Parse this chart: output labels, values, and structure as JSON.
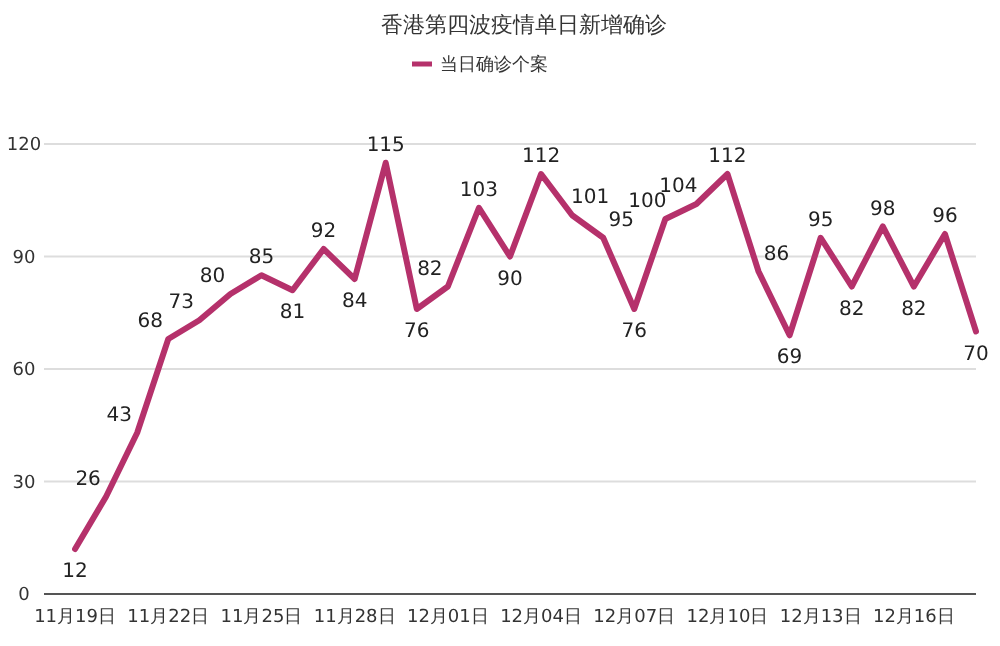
{
  "chart_data": {
    "type": "line",
    "title": "香港第四波疫情单日新增确诊",
    "x": [
      "--11-19",
      "--11-20",
      "--11-21",
      "--11-22",
      "--11-23",
      "--11-24",
      "--11-25",
      "--11-26",
      "--11-27",
      "--11-28",
      "--11-29",
      "--11-30",
      "--12-01",
      "--12-02",
      "--12-03",
      "--12-04",
      "--12-05",
      "--12-06",
      "--12-07",
      "--12-08",
      "--12-09",
      "--12-10",
      "--12-11",
      "--12-12",
      "--12-13",
      "--12-14",
      "--12-15",
      "--12-16",
      "--12-17",
      "--12-18"
    ],
    "series": [
      {
        "name": "当日确诊个案",
        "color": "#b5316b",
        "values": [
          12,
          26,
          43,
          68,
          73,
          80,
          85,
          81,
          92,
          84,
          115,
          76,
          82,
          103,
          90,
          112,
          101,
          95,
          76,
          100,
          104,
          112,
          86,
          69,
          95,
          82,
          98,
          82,
          96,
          70
        ]
      }
    ],
    "xlim": [
      "--11-18",
      "--12-18"
    ],
    "xticks": [
      {
        "value": "--11-19",
        "label": "11月19日"
      },
      {
        "value": "--11-22",
        "label": "11月22日"
      },
      {
        "value": "--11-25",
        "label": "11月25日"
      },
      {
        "value": "--11-28",
        "label": "11月28日"
      },
      {
        "value": "--12-01",
        "label": "12月01日"
      },
      {
        "value": "--12-04",
        "label": "12月04日"
      },
      {
        "value": "--12-07",
        "label": "12月07日"
      },
      {
        "value": "--12-10",
        "label": "12月10日"
      },
      {
        "value": "--12-13",
        "label": "12月13日"
      },
      {
        "value": "--12-16",
        "label": "12月16日"
      }
    ],
    "ylim": [
      0,
      120
    ],
    "yticks": [
      0,
      30,
      60,
      90,
      120
    ],
    "grid": "y",
    "legend": "top",
    "data_labels": true,
    "marker": "none",
    "line_style": "solid"
  }
}
